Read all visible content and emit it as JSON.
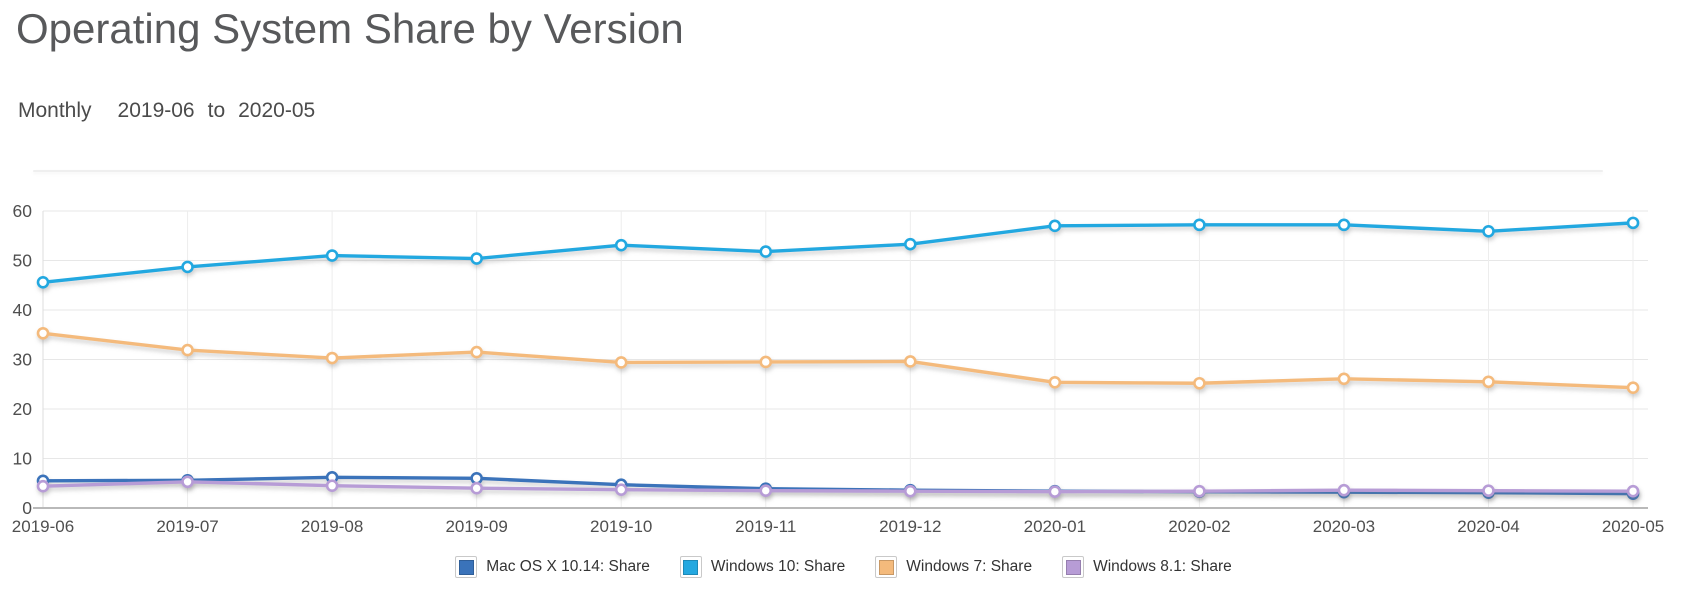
{
  "page": {
    "title": "Operating System Share by Version",
    "controls": {
      "interval": "Monthly",
      "date_from": "2019-06",
      "to_word": "to",
      "date_to": "2020-05"
    }
  },
  "chart_data": {
    "type": "line",
    "title": "Operating System Share by Version",
    "xlabel": "",
    "ylabel": "",
    "ylim": [
      0,
      60
    ],
    "ytick_interval": 10,
    "yticks": [
      0,
      10,
      20,
      30,
      40,
      50,
      60
    ],
    "grid": true,
    "legend_position": "bottom",
    "marker": "open-circle",
    "categories": [
      "2019-06",
      "2019-07",
      "2019-08",
      "2019-09",
      "2019-10",
      "2019-11",
      "2019-12",
      "2020-01",
      "2020-02",
      "2020-03",
      "2020-04",
      "2020-05"
    ],
    "series": [
      {
        "name": "Mac OS X 10.14: Share",
        "color": "#3a73ba",
        "values": [
          5.5,
          5.6,
          6.2,
          6.0,
          4.7,
          3.9,
          3.6,
          3.4,
          3.3,
          3.2,
          3.1,
          2.9
        ]
      },
      {
        "name": "Windows 10: Share",
        "color": "#24a8e0",
        "values": [
          45.6,
          48.7,
          51.0,
          50.4,
          53.1,
          51.8,
          53.3,
          57.0,
          57.2,
          57.2,
          55.9,
          57.6
        ]
      },
      {
        "name": "Windows 7: Share",
        "color": "#f4ba7c",
        "values": [
          35.3,
          31.9,
          30.3,
          31.5,
          29.4,
          29.5,
          29.6,
          25.4,
          25.2,
          26.1,
          25.5,
          24.3
        ]
      },
      {
        "name": "Windows 8.1: Share",
        "color": "#b79cd6",
        "values": [
          4.4,
          5.3,
          4.5,
          4.0,
          3.7,
          3.5,
          3.4,
          3.3,
          3.4,
          3.6,
          3.5,
          3.4
        ]
      }
    ]
  }
}
